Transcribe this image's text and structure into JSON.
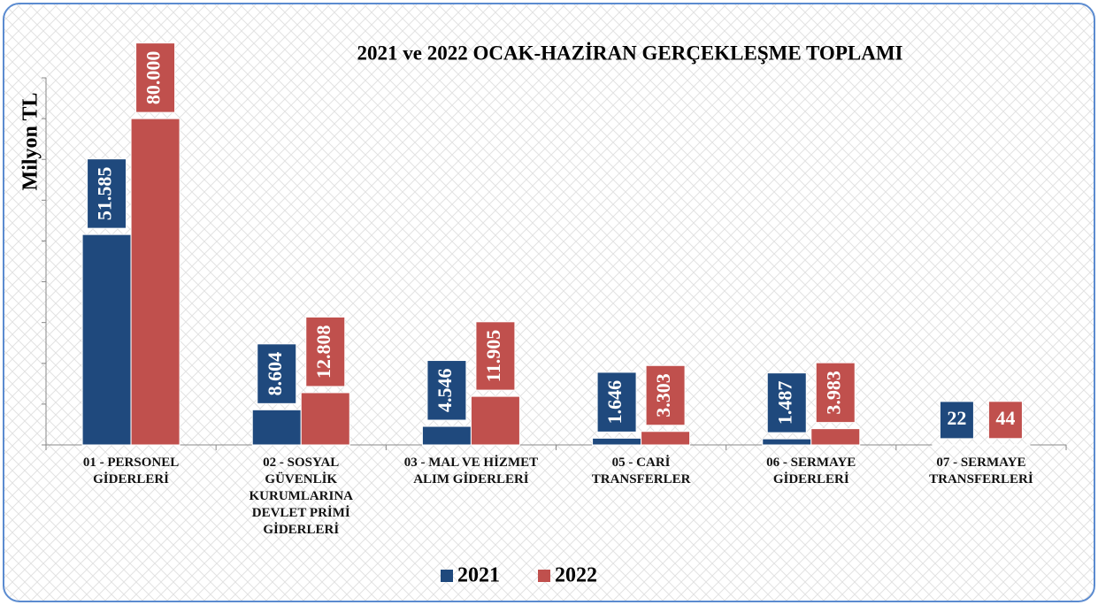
{
  "chart_data": {
    "type": "bar",
    "title": "2021 ve 2022 OCAK-HAZİRAN GERÇEKLEŞME TOPLAMI",
    "y_label": "Milyon TL",
    "categories": [
      "01 - PERSONEL GİDERLERİ",
      "02 - SOSYAL GÜVENLİK KURUMLARINA DEVLET PRİMİ GİDERLERİ",
      "03 - MAL VE HİZMET ALIM GİDERLERİ",
      "05 - CARİ TRANSFERLER",
      "06 - SERMAYE GİDERLERİ",
      "07 - SERMAYE TRANSFERLERİ"
    ],
    "series": [
      {
        "name": "2021",
        "color": "#1f497d",
        "values": [
          51585,
          8604,
          4546,
          1646,
          1487,
          22
        ],
        "value_labels": [
          "51.585",
          "8.604",
          "4.546",
          "1.646",
          "1.487",
          "22"
        ]
      },
      {
        "name": "2022",
        "color": "#c0504d",
        "values": [
          80000,
          12808,
          11905,
          3303,
          3983,
          44
        ],
        "value_labels": [
          "80.000",
          "12.808",
          "11.905",
          "3.303",
          "3.983",
          "44"
        ]
      }
    ],
    "ylim": [
      0,
      90000
    ],
    "yticks": [
      0,
      10000,
      20000,
      30000,
      40000,
      50000,
      60000,
      70000,
      80000,
      90000
    ],
    "legend": "bottom"
  }
}
